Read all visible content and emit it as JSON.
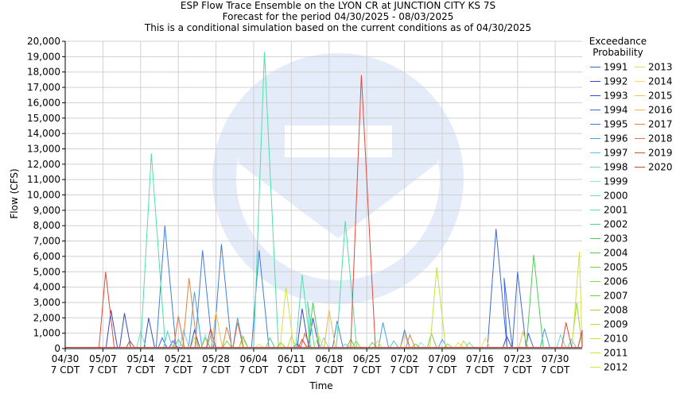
{
  "chart_data": {
    "type": "line",
    "title": "ESP Flow Trace Ensemble on the LYON CR at JUNCTION CITY KS 7S",
    "subtitle_1": "Forecast for the period 04/30/2025 - 08/03/2025",
    "subtitle_2": "This is a conditional simulation based on the current conditions as of 04/30/2025",
    "xlabel": "Time",
    "ylabel": "Flow (CFS)",
    "ylim": [
      0,
      20000
    ],
    "yticks": [
      0,
      1000,
      2000,
      3000,
      4000,
      5000,
      6000,
      7000,
      8000,
      9000,
      10000,
      11000,
      12000,
      13000,
      14000,
      15000,
      16000,
      17000,
      18000,
      19000,
      20000
    ],
    "ytick_labels": [
      "0",
      "1,000",
      "2,000",
      "3,000",
      "4,000",
      "5,000",
      "6,000",
      "7,000",
      "8,000",
      "9,000",
      "10,000",
      "11,000",
      "12,000",
      "13,000",
      "14,000",
      "15,000",
      "16,000",
      "17,000",
      "18,000",
      "19,000",
      "20,000"
    ],
    "xlim_days": [
      0,
      96
    ],
    "xticks": [
      {
        "day": 0,
        "date": "04/30",
        "tz": "7 CDT"
      },
      {
        "day": 7,
        "date": "05/07",
        "tz": "7 CDT"
      },
      {
        "day": 14,
        "date": "05/14",
        "tz": "7 CDT"
      },
      {
        "day": 21,
        "date": "05/21",
        "tz": "7 CDT"
      },
      {
        "day": 28,
        "date": "05/28",
        "tz": "7 CDT"
      },
      {
        "day": 35,
        "date": "06/04",
        "tz": "7 CDT"
      },
      {
        "day": 42,
        "date": "06/11",
        "tz": "7 CDT"
      },
      {
        "day": 49,
        "date": "06/18",
        "tz": "7 CDT"
      },
      {
        "day": 56,
        "date": "06/25",
        "tz": "7 CDT"
      },
      {
        "day": 63,
        "date": "07/02",
        "tz": "7 CDT"
      },
      {
        "day": 70,
        "date": "07/09",
        "tz": "7 CDT"
      },
      {
        "day": 77,
        "date": "07/16",
        "tz": "7 CDT"
      },
      {
        "day": 84,
        "date": "07/23",
        "tz": "7 CDT"
      },
      {
        "day": 91,
        "date": "07/30",
        "tz": "7 CDT"
      }
    ],
    "grid": true,
    "legend_title_1": "Exceedance",
    "legend_title_2": "Probability",
    "legend_placement": "right",
    "baseline": 80,
    "series": [
      {
        "name": "1991",
        "color": "#3f5fd8",
        "peaks": [
          [
            20,
            500
          ],
          [
            43,
            300
          ]
        ]
      },
      {
        "name": "1992",
        "color": "#3a48c9",
        "peaks": [
          [
            8.5,
            2500
          ],
          [
            24,
            1200
          ],
          [
            44,
            2600
          ]
        ]
      },
      {
        "name": "1993",
        "color": "#3550c0",
        "peaks": [
          [
            11,
            2300
          ],
          [
            15.5,
            2000
          ],
          [
            46,
            2000
          ],
          [
            82,
            800
          ]
        ]
      },
      {
        "name": "1994",
        "color": "#3e66d8",
        "peaks": [
          [
            18,
            700
          ],
          [
            80,
            7800
          ],
          [
            81.5,
            4600
          ],
          [
            84,
            5000
          ],
          [
            86,
            1000
          ]
        ]
      },
      {
        "name": "1995",
        "color": "#3f7ee0",
        "peaks": [
          [
            18.5,
            8000
          ],
          [
            25.5,
            6400
          ],
          [
            29,
            6800
          ],
          [
            36,
            6400
          ],
          [
            50.5,
            1800
          ],
          [
            63,
            1200
          ]
        ]
      },
      {
        "name": "1996",
        "color": "#3fa5e6",
        "peaks": [
          [
            24,
            3700
          ],
          [
            32,
            2000
          ],
          [
            59,
            1700
          ],
          [
            70,
            600
          ],
          [
            89,
            1300
          ]
        ]
      },
      {
        "name": "1997",
        "color": "#52c8e0",
        "peaks": [
          [
            19,
            1100
          ],
          [
            27,
            800
          ],
          [
            61,
            500
          ],
          [
            94,
            600
          ]
        ]
      },
      {
        "name": "1998",
        "color": "#6cd8e0",
        "peaks": [
          [
            22,
            1200
          ],
          [
            52,
            300
          ],
          [
            92,
            900
          ]
        ]
      },
      {
        "name": "1999",
        "color": "#8de5e6",
        "peaks": [
          [
            26,
            900
          ],
          [
            66,
            400
          ]
        ]
      },
      {
        "name": "2000",
        "color": "#65e0d0",
        "peaks": [
          [
            14,
            1100
          ],
          [
            48,
            700
          ],
          [
            75,
            400
          ]
        ]
      },
      {
        "name": "2001",
        "color": "#4ee0a8",
        "peaks": [
          [
            16,
            12700
          ],
          [
            37,
            19300
          ],
          [
            44,
            4800
          ],
          [
            45,
            3100
          ],
          [
            52,
            8300
          ]
        ]
      },
      {
        "name": "2002",
        "color": "#55d27f",
        "peaks": [
          [
            21,
            600
          ],
          [
            38,
            700
          ],
          [
            57,
            400
          ]
        ]
      },
      {
        "name": "2003",
        "color": "#4ccf55",
        "peaks": [
          [
            46,
            3000
          ],
          [
            87,
            6100
          ]
        ]
      },
      {
        "name": "2004",
        "color": "#5bc94a",
        "peaks": [
          [
            33,
            800
          ],
          [
            53,
            600
          ]
        ]
      },
      {
        "name": "2005",
        "color": "#6fd33a",
        "peaks": [
          [
            40,
            400
          ],
          [
            65,
            300
          ]
        ]
      },
      {
        "name": "2006",
        "color": "#86da3a",
        "peaks": [
          [
            30,
            500
          ],
          [
            71,
            300
          ]
        ]
      },
      {
        "name": "2007",
        "color": "#7fc83c",
        "peaks": [
          [
            26,
            700
          ],
          [
            68,
            1000
          ]
        ]
      },
      {
        "name": "2008",
        "color": "#9ad83a",
        "peaks": [
          [
            54,
            500
          ],
          [
            95,
            3000
          ]
        ]
      },
      {
        "name": "2009",
        "color": "#b3df3c",
        "peaks": [
          [
            42,
            800
          ],
          [
            74,
            500
          ]
        ]
      },
      {
        "name": "2010",
        "color": "#c6e23e",
        "peaks": [
          [
            33,
            600
          ],
          [
            69,
            5300
          ]
        ]
      },
      {
        "name": "2011",
        "color": "#d4e23e",
        "peaks": [
          [
            24,
            700
          ],
          [
            58,
            500
          ]
        ]
      },
      {
        "name": "2012",
        "color": "#dbe043",
        "peaks": [
          [
            41,
            4000
          ],
          [
            95.5,
            6300
          ]
        ]
      },
      {
        "name": "2013",
        "color": "#e6df5a",
        "peaks": [
          [
            47,
            900
          ],
          [
            73,
            400
          ]
        ]
      },
      {
        "name": "2014",
        "color": "#eadb73",
        "peaks": [
          [
            36,
            300
          ],
          [
            78,
            700
          ]
        ]
      },
      {
        "name": "2015",
        "color": "#efc453",
        "peaks": [
          [
            28,
            2400
          ],
          [
            63,
            900
          ]
        ]
      },
      {
        "name": "2016",
        "color": "#f0b84e",
        "peaks": [
          [
            49,
            2500
          ],
          [
            85,
            1100
          ]
        ]
      },
      {
        "name": "2017",
        "color": "#e4823e",
        "peaks": [
          [
            23,
            4600
          ],
          [
            30,
            1400
          ],
          [
            64,
            900
          ]
        ]
      },
      {
        "name": "2018",
        "color": "#e86a4c",
        "peaks": [
          [
            21,
            2100
          ],
          [
            32,
            1700
          ],
          [
            44.5,
            1000
          ]
        ]
      },
      {
        "name": "2019",
        "color": "#e04a3a",
        "peaks": [
          [
            7.5,
            5000
          ],
          [
            27,
            1300
          ],
          [
            55,
            17800
          ],
          [
            93,
            1700
          ]
        ]
      },
      {
        "name": "2020",
        "color": "#d64034",
        "peaks": [
          [
            12,
            500
          ],
          [
            44,
            600
          ],
          [
            96,
            1200
          ]
        ]
      }
    ]
  }
}
